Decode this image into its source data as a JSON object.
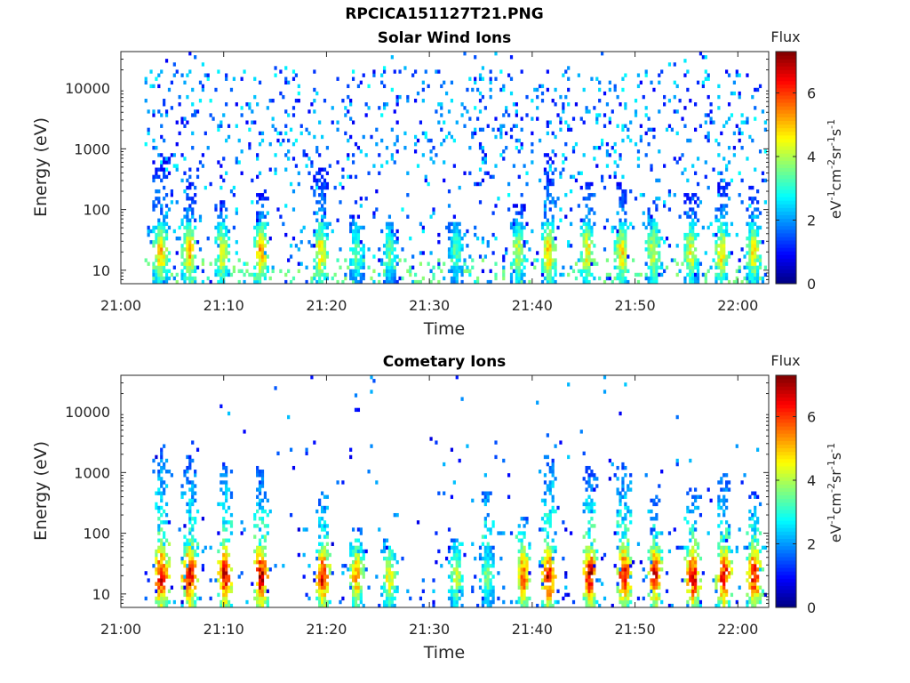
{
  "figure": {
    "filename_title": "RPCICA151127T21.PNG"
  },
  "colors": {
    "colormap": "jet",
    "axis": "#262626",
    "background": "#ffffff"
  },
  "chart_data": [
    {
      "type": "heatmap",
      "title": "Solar Wind Ions",
      "xlabel": "Time",
      "ylabel": "Energy (eV)",
      "yscale": "log",
      "xlim_minutes": [
        0,
        63
      ],
      "ylim": [
        6,
        40000
      ],
      "x_ticks": [
        {
          "label": "21:00",
          "minute": 0
        },
        {
          "label": "21:10",
          "minute": 10
        },
        {
          "label": "21:20",
          "minute": 20
        },
        {
          "label": "21:30",
          "minute": 30
        },
        {
          "label": "21:40",
          "minute": 40
        },
        {
          "label": "21:50",
          "minute": 50
        },
        {
          "label": "22:00",
          "minute": 60
        }
      ],
      "y_ticks": [
        {
          "label": "10",
          "value": 10
        },
        {
          "label": "100",
          "value": 100
        },
        {
          "label": "1000",
          "value": 1000
        },
        {
          "label": "10000",
          "value": 10000
        }
      ],
      "colorbar": {
        "title": "Flux",
        "unit_label": "eV-1cm-2sr-1s-1",
        "range": [
          0,
          7.3
        ],
        "ticks": [
          0,
          2,
          4,
          6
        ],
        "tick_labels": [
          "0",
          "2",
          "4",
          "6"
        ]
      },
      "description": "Sparse scattered background at all energies (flux ~1-3), denser below ~3000 eV; short vertical bursts at 10-60 eV with flux ~4-5.",
      "bursts": [
        {
          "minute": 3.8,
          "max_flux": 4.9,
          "top_energy": 800
        },
        {
          "minute": 6.5,
          "max_flux": 5.0,
          "top_energy": 300
        },
        {
          "minute": 9.7,
          "max_flux": 4.6,
          "top_energy": 150
        },
        {
          "minute": 13.5,
          "max_flux": 5.1,
          "top_energy": 200
        },
        {
          "minute": 19.3,
          "max_flux": 4.8,
          "top_energy": 600
        },
        {
          "minute": 22.8,
          "max_flux": 3.6,
          "top_energy": 80
        },
        {
          "minute": 26.0,
          "max_flux": 3.4,
          "top_energy": 60
        },
        {
          "minute": 32.5,
          "max_flux": 3.4,
          "top_energy": 60
        },
        {
          "minute": 38.5,
          "max_flux": 4.2,
          "top_energy": 120
        },
        {
          "minute": 41.5,
          "max_flux": 4.9,
          "top_energy": 900
        },
        {
          "minute": 45.2,
          "max_flux": 4.7,
          "top_energy": 300
        },
        {
          "minute": 48.6,
          "max_flux": 4.8,
          "top_energy": 300
        },
        {
          "minute": 51.7,
          "max_flux": 4.4,
          "top_energy": 150
        },
        {
          "minute": 55.3,
          "max_flux": 4.5,
          "top_energy": 200
        },
        {
          "minute": 58.3,
          "max_flux": 4.7,
          "top_energy": 300
        },
        {
          "minute": 61.4,
          "max_flux": 4.6,
          "top_energy": 250
        }
      ]
    },
    {
      "type": "heatmap",
      "title": "Cometary Ions",
      "xlabel": "Time",
      "ylabel": "Energy (eV)",
      "yscale": "log",
      "xlim_minutes": [
        0,
        63
      ],
      "ylim": [
        6,
        40000
      ],
      "x_ticks": [
        {
          "label": "21:00",
          "minute": 0
        },
        {
          "label": "21:10",
          "minute": 10
        },
        {
          "label": "21:20",
          "minute": 20
        },
        {
          "label": "21:30",
          "minute": 30
        },
        {
          "label": "21:40",
          "minute": 40
        },
        {
          "label": "21:50",
          "minute": 50
        },
        {
          "label": "22:00",
          "minute": 60
        }
      ],
      "y_ticks": [
        {
          "label": "10",
          "value": 10
        },
        {
          "label": "100",
          "value": 100
        },
        {
          "label": "1000",
          "value": 1000
        },
        {
          "label": "10000",
          "value": 10000
        }
      ],
      "colorbar": {
        "title": "Flux",
        "unit_label": "eV-1cm-2sr-1s-1",
        "range": [
          0,
          7.3
        ],
        "ticks": [
          0,
          2,
          4,
          6
        ],
        "tick_labels": [
          "0",
          "2",
          "4",
          "6"
        ]
      },
      "description": "Intense bursts (flux up to ~6.5) at 10-40 eV extending as cyan/blue tails up to 1000-3000 eV; sparse dots at higher energies.",
      "bursts": [
        {
          "minute": 3.8,
          "max_flux": 6.6,
          "top_energy": 3000
        },
        {
          "minute": 6.6,
          "max_flux": 6.7,
          "top_energy": 2000
        },
        {
          "minute": 10.0,
          "max_flux": 6.6,
          "top_energy": 1500
        },
        {
          "minute": 13.5,
          "max_flux": 6.8,
          "top_energy": 1200
        },
        {
          "minute": 19.5,
          "max_flux": 6.3,
          "top_energy": 600
        },
        {
          "minute": 22.8,
          "max_flux": 5.3,
          "top_energy": 120
        },
        {
          "minute": 26.0,
          "max_flux": 4.6,
          "top_energy": 80
        },
        {
          "minute": 32.5,
          "max_flux": 4.2,
          "top_energy": 80
        },
        {
          "minute": 35.5,
          "max_flux": 3.6,
          "top_energy": 600
        },
        {
          "minute": 39.0,
          "max_flux": 5.8,
          "top_energy": 200
        },
        {
          "minute": 41.5,
          "max_flux": 6.6,
          "top_energy": 2000
        },
        {
          "minute": 45.5,
          "max_flux": 6.6,
          "top_energy": 1200
        },
        {
          "minute": 48.8,
          "max_flux": 6.6,
          "top_energy": 1500
        },
        {
          "minute": 51.8,
          "max_flux": 6.3,
          "top_energy": 400
        },
        {
          "minute": 55.5,
          "max_flux": 6.6,
          "top_energy": 600
        },
        {
          "minute": 58.5,
          "max_flux": 6.5,
          "top_energy": 1000
        },
        {
          "minute": 61.5,
          "max_flux": 6.6,
          "top_energy": 500
        }
      ]
    }
  ]
}
